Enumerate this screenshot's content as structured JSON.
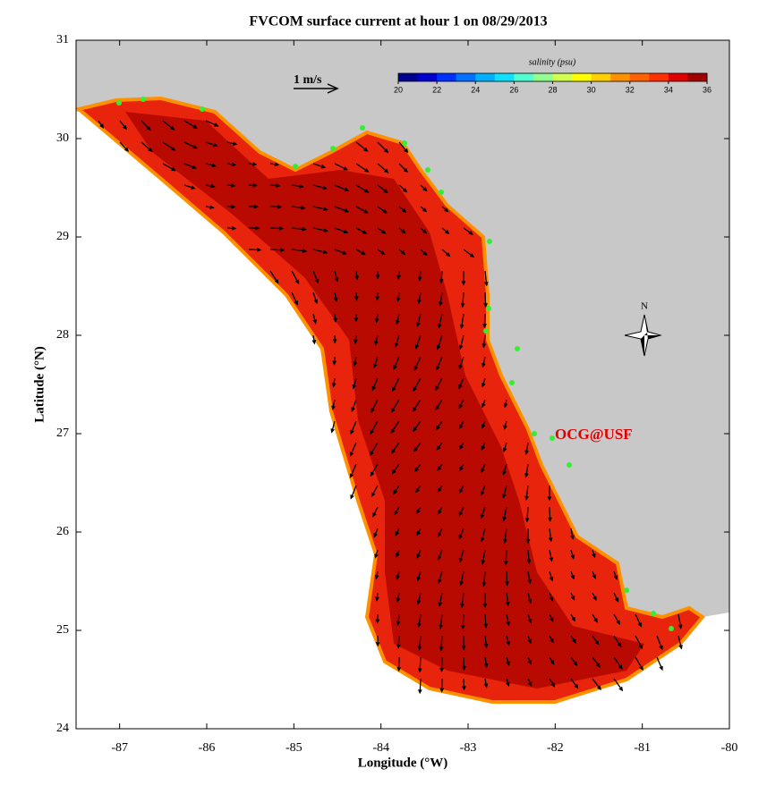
{
  "chart_data": {
    "type": "map",
    "title": "FVCOM surface current at hour 1 on 08/29/2013",
    "x_label": "Longitude (°W)",
    "y_label": "Latitude (°N)",
    "xlim": [
      -87.5,
      -80
    ],
    "ylim": [
      24,
      31
    ],
    "xticks": [
      -87,
      -86,
      -85,
      -84,
      -83,
      -82,
      -81,
      -80
    ],
    "yticks": [
      24,
      25,
      26,
      27,
      28,
      29,
      30,
      31
    ],
    "colorbar": {
      "label": "salinity (psu)",
      "lim": [
        20,
        36
      ],
      "ticks": [
        20,
        22,
        24,
        26,
        28,
        30,
        32,
        34,
        36
      ],
      "colors": [
        "#00008f",
        "#0000d0",
        "#0030ff",
        "#0070ff",
        "#00b0ff",
        "#10e0ff",
        "#50ffd0",
        "#90ff90",
        "#d0ff50",
        "#ffff00",
        "#ffd000",
        "#ff9000",
        "#ff6000",
        "#ff3000",
        "#e00000",
        "#a00000"
      ]
    },
    "scale_label": "1 m/s",
    "compass_label": "N",
    "annotation": "OCG@USF"
  }
}
